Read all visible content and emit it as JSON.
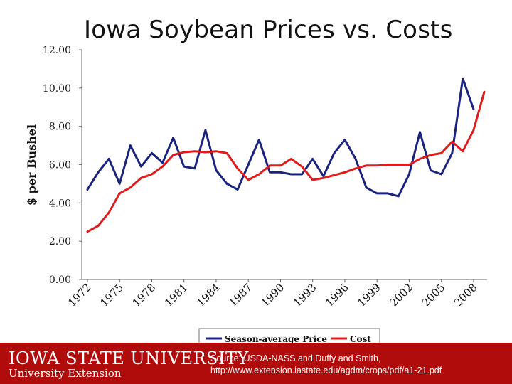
{
  "slide": {
    "title": "Iowa Soybean Prices vs. Costs"
  },
  "chart_data": {
    "type": "line",
    "ylabel": "$ per Bushel",
    "xlabel": "",
    "ylim": [
      0,
      12
    ],
    "yticks": [
      "0.00",
      "2.00",
      "4.00",
      "6.00",
      "8.00",
      "10.00",
      "12.00"
    ],
    "xlim": [
      1972,
      2009
    ],
    "xticks": [
      "1972",
      "1975",
      "1978",
      "1981",
      "1984",
      "1987",
      "1990",
      "1993",
      "1996",
      "1999",
      "2002",
      "2005",
      "2008"
    ],
    "grid": false,
    "legend_position": "bottom",
    "series": [
      {
        "name": "Season-average Price",
        "color": "#1a237e",
        "x": [
          1972,
          1973,
          1974,
          1975,
          1976,
          1977,
          1978,
          1979,
          1980,
          1981,
          1982,
          1983,
          1984,
          1985,
          1986,
          1987,
          1988,
          1989,
          1990,
          1991,
          1992,
          1993,
          1994,
          1995,
          1996,
          1997,
          1998,
          1999,
          2000,
          2001,
          2002,
          2003,
          2004,
          2005,
          2006,
          2007,
          2008
        ],
        "values": [
          4.7,
          5.6,
          6.3,
          5.0,
          7.0,
          5.9,
          6.6,
          6.1,
          7.4,
          5.9,
          5.8,
          7.8,
          5.7,
          5.0,
          4.7,
          6.0,
          7.3,
          5.6,
          5.6,
          5.5,
          5.5,
          6.3,
          5.4,
          6.6,
          7.3,
          6.3,
          4.8,
          4.5,
          4.5,
          4.35,
          5.5,
          7.7,
          5.7,
          5.5,
          6.6,
          10.5,
          8.9
        ]
      },
      {
        "name": "Cost",
        "color": "#e01b1b",
        "x": [
          1972,
          1973,
          1974,
          1975,
          1976,
          1977,
          1978,
          1979,
          1980,
          1981,
          1982,
          1983,
          1984,
          1985,
          1986,
          1987,
          1988,
          1989,
          1990,
          1991,
          1992,
          1993,
          1994,
          1995,
          1996,
          1997,
          1998,
          1999,
          2000,
          2001,
          2002,
          2003,
          2004,
          2005,
          2006,
          2007,
          2008,
          2009
        ],
        "values": [
          2.5,
          2.8,
          3.5,
          4.5,
          4.8,
          5.3,
          5.5,
          5.9,
          6.5,
          6.65,
          6.7,
          6.65,
          6.7,
          6.6,
          5.8,
          5.2,
          5.5,
          5.95,
          5.95,
          6.3,
          5.9,
          5.2,
          5.3,
          5.45,
          5.6,
          5.8,
          5.95,
          5.95,
          6.0,
          6.0,
          6.0,
          6.3,
          6.5,
          6.6,
          7.2,
          6.7,
          7.8,
          9.8
        ]
      }
    ]
  },
  "footer": {
    "university": "IOWA STATE UNIVERSITY",
    "unit": "University Extension",
    "source_line1": "Source: USDA-NASS and Duffy and Smith,",
    "source_line2": "http://www.extension.iastate.edu/agdm/crops/pdf/a1-21.pdf"
  }
}
